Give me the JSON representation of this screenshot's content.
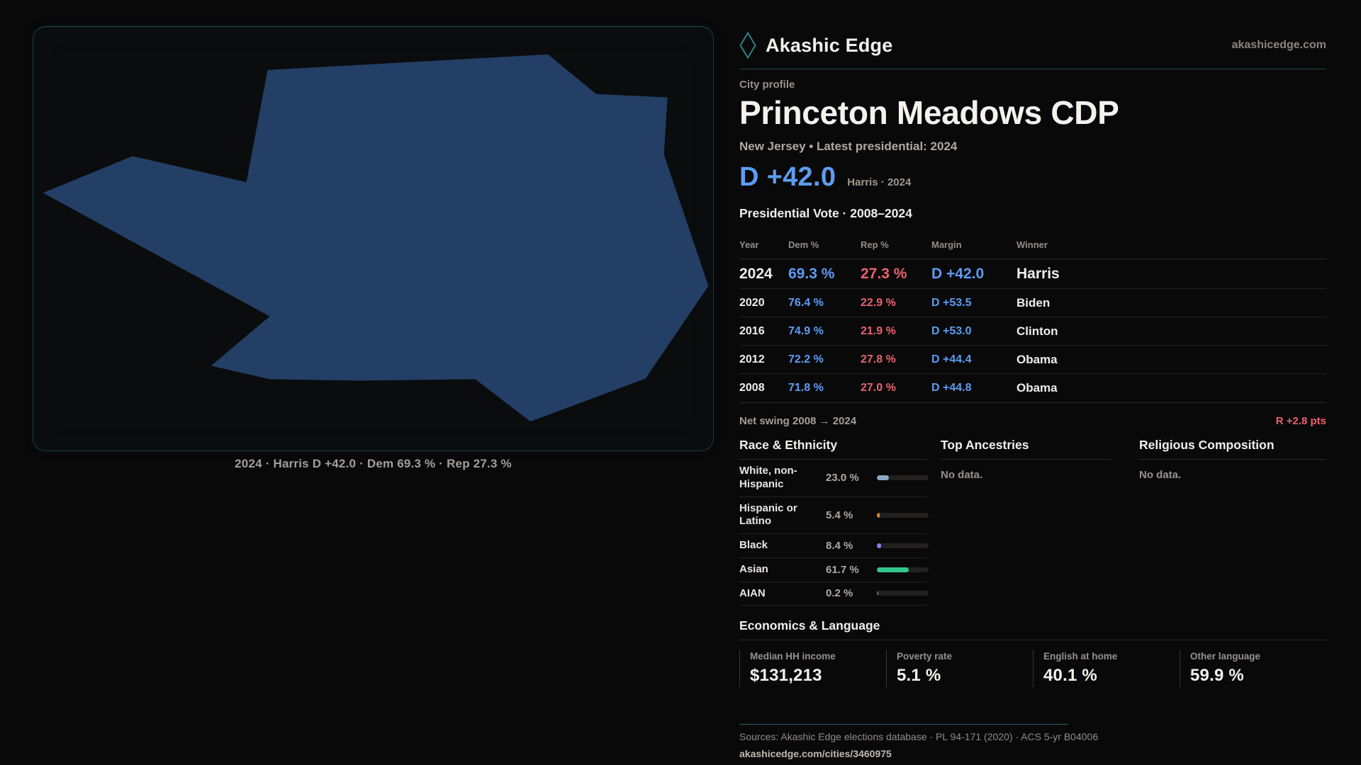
{
  "brand": {
    "name": "Akashic Edge",
    "domain": "akashicedge.com",
    "accent_teal": "#2c8188"
  },
  "profile": {
    "kicker": "City profile",
    "title": "Princeton Meadows CDP",
    "subtitle": "New Jersey • Latest presidential: 2024",
    "headline_margin": "D +42.0",
    "headline_context": "Harris · 2024"
  },
  "map": {
    "caption": "2024 · Harris D +42.0 · Dem 69.3 % · Rep 27.3 %",
    "fill_color": "#233f66"
  },
  "colors": {
    "dem_blue": "#5e9cf1",
    "rep_red": "#e9636f",
    "swing_red": "#ee5f6b",
    "white_text": "#f1eee9"
  },
  "vote_table": {
    "title": "Presidential Vote · 2008–2024",
    "headers": [
      "Year",
      "Dem %",
      "Rep %",
      "Margin",
      "Winner"
    ],
    "rows": [
      {
        "year": "2024",
        "dem": "69.3 %",
        "rep": "27.3 %",
        "margin": "D +42.0",
        "winner": "Harris",
        "highlight": true
      },
      {
        "year": "2020",
        "dem": "76.4 %",
        "rep": "22.9 %",
        "margin": "D +53.5",
        "winner": "Biden",
        "highlight": false
      },
      {
        "year": "2016",
        "dem": "74.9 %",
        "rep": "21.9 %",
        "margin": "D +53.0",
        "winner": "Clinton",
        "highlight": false
      },
      {
        "year": "2012",
        "dem": "72.2 %",
        "rep": "27.8 %",
        "margin": "D +44.4",
        "winner": "Obama",
        "highlight": false
      },
      {
        "year": "2008",
        "dem": "71.8 %",
        "rep": "27.0 %",
        "margin": "D +44.8",
        "winner": "Obama",
        "highlight": false
      }
    ]
  },
  "net_swing": {
    "label": "Net swing 2008 → 2024",
    "value": "R +2.8 pts"
  },
  "race": {
    "title": "Race & Ethnicity",
    "rows": [
      {
        "label": "White, non-Hispanic",
        "value": "23.0 %",
        "pct": 23.0,
        "color": "#8da7c4"
      },
      {
        "label": "Hispanic or Latino",
        "value": "5.4 %",
        "pct": 5.4,
        "color": "#e1882b"
      },
      {
        "label": "Black",
        "value": "8.4 %",
        "pct": 8.4,
        "color": "#8b80ee"
      },
      {
        "label": "Asian",
        "value": "61.7 %",
        "pct": 61.7,
        "color": "#34c78c"
      },
      {
        "label": "AIAN",
        "value": "0.2 %",
        "pct": 0.2,
        "color": "#a8631f"
      }
    ]
  },
  "ancestries": {
    "title": "Top Ancestries",
    "empty": "No data."
  },
  "religion": {
    "title": "Religious Composition",
    "empty": "No data."
  },
  "economics": {
    "title": "Economics & Language",
    "stats": [
      {
        "label": "Median HH income",
        "value": "$131,213"
      },
      {
        "label": "Poverty rate",
        "value": "5.1 %"
      },
      {
        "label": "English at home",
        "value": "40.1 %"
      },
      {
        "label": "Other language",
        "value": "59.9 %"
      }
    ]
  },
  "footer": {
    "sources": "Sources: Akashic Edge elections database · PL 94-171 (2020) · ACS 5-yr B04006",
    "permalink": "akashicedge.com/cities/3460975"
  }
}
